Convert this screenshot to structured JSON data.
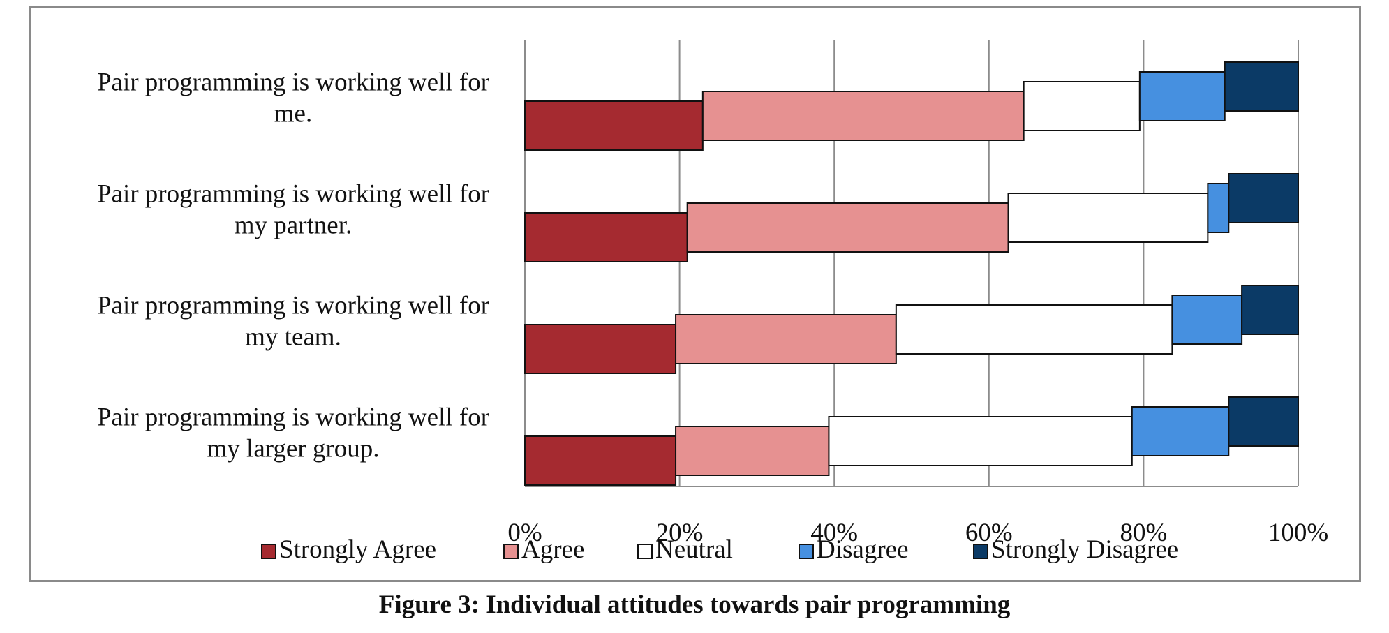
{
  "caption": "Figure 3: Individual attitudes towards pair programming",
  "chart_data": {
    "type": "bar",
    "orientation": "horizontal",
    "stacked": "100%",
    "categories": [
      [
        "Pair programming is working well for",
        "me."
      ],
      [
        "Pair programming is working well for",
        "my partner."
      ],
      [
        "Pair programming is working well for",
        "my team."
      ],
      [
        "Pair programming is working well for",
        "my larger group."
      ]
    ],
    "series": [
      {
        "name": "Strongly Agree",
        "color": "#a52a30",
        "values": [
          23,
          21,
          19.5,
          19.5
        ]
      },
      {
        "name": "Agree",
        "color": "#e69191",
        "values": [
          41.5,
          41.5,
          28.5,
          19.8
        ]
      },
      {
        "name": "Neutral",
        "color": "#ffffff",
        "values": [
          15,
          25.8,
          35.7,
          39.2
        ]
      },
      {
        "name": "Disagree",
        "color": "#4690e0",
        "values": [
          11,
          2.7,
          9,
          12.5
        ]
      },
      {
        "name": "Strongly Disagree",
        "color": "#0b3a66",
        "values": [
          9.5,
          9,
          7.3,
          9
        ]
      }
    ],
    "xlim": [
      0,
      100
    ],
    "xticks": [
      "0%",
      "20%",
      "40%",
      "60%",
      "80%",
      "100%"
    ],
    "grid": true,
    "legend": "bottom"
  }
}
